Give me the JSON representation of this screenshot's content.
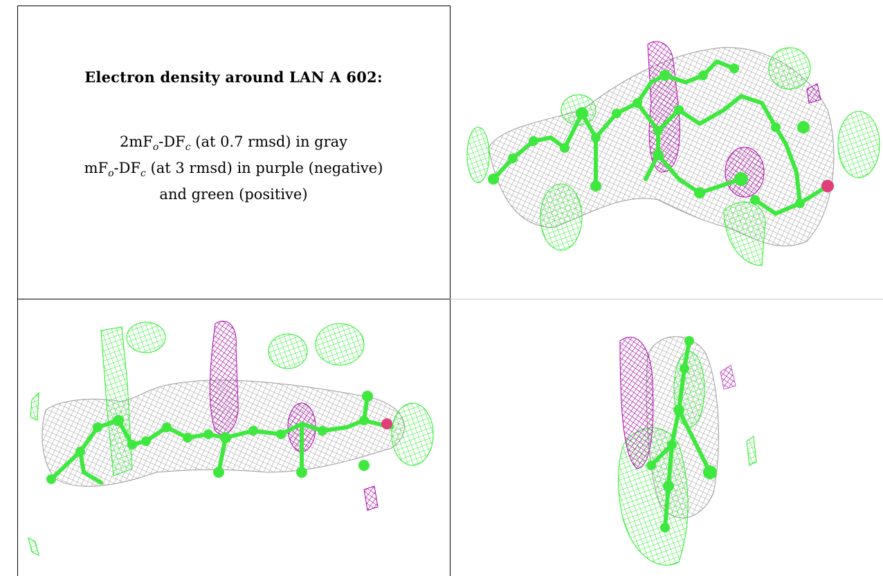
{
  "caption": {
    "heading": "Electron density around LAN A 602:",
    "line1": {
      "p1": "2mF",
      "s1": "o",
      "p2": "-DF",
      "s2": "c",
      "p3": " (at 0.7 rmsd) in gray"
    },
    "line2": {
      "p1": "mF",
      "s1": "o",
      "p2": "-DF",
      "s2": "c",
      "p3": " (at 3 rmsd) in purple (negative)"
    },
    "line3": "and green (positive)"
  },
  "colors": {
    "positive": "#22ee22",
    "negative": "#aa00aa",
    "twofofc": "#9a9a9a",
    "atom": "#3fe83f",
    "oxygen": "#e0407a"
  },
  "panels": [
    {
      "view": "top-right"
    },
    {
      "view": "bottom-left"
    },
    {
      "view": "bottom-right"
    }
  ]
}
